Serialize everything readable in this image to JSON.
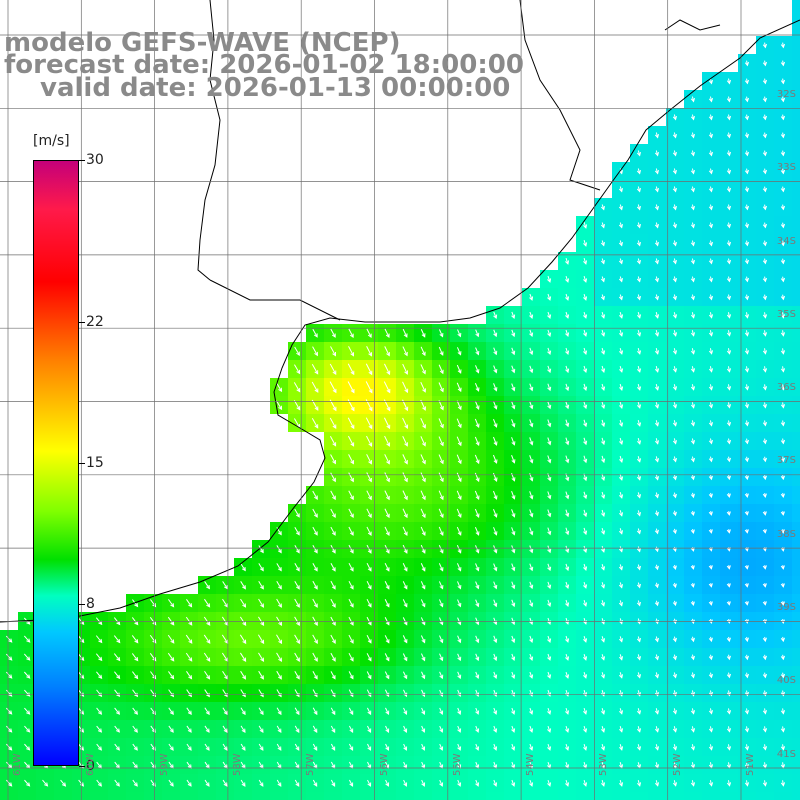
{
  "title": {
    "line1": "modelo GEFS-WAVE (NCEP)",
    "line2": "forecast date: 2026-01-02 18:00:00",
    "line3": "valid date: 2026-01-13 00:00:00"
  },
  "colorbar": {
    "unit": "[m/s]",
    "ticks": [
      "30",
      "22",
      "15",
      "8",
      "0"
    ],
    "min": 0,
    "max": 30,
    "colors": [
      "#0000ff",
      "#0080ff",
      "#00c8ff",
      "#00ffc0",
      "#00e000",
      "#80ff00",
      "#ffff00",
      "#ff8000",
      "#ff0000",
      "#ff1a4a",
      "#c4007a"
    ]
  },
  "grid": {
    "lat_labels": [
      "32S",
      "33S",
      "34S",
      "35S",
      "36S",
      "37S",
      "38S",
      "39S",
      "40S",
      "41S"
    ],
    "lon_labels": [
      "61W",
      "60W",
      "59W",
      "58W",
      "57W",
      "56W",
      "55W",
      "54W",
      "53W",
      "52W",
      "51W"
    ]
  },
  "colors": {
    "land": "#ffffff",
    "coastline": "#000000",
    "gridline": "#6e6e6e",
    "arrow": "#ffffff"
  }
}
